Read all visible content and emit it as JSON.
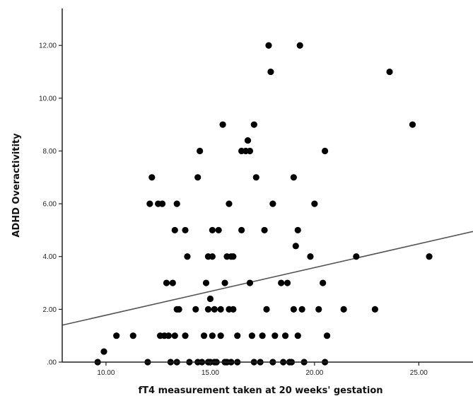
{
  "chart_data": {
    "type": "scatter",
    "title": "",
    "xlabel": "fT4 measurement taken at 20 weeks' gestation",
    "ylabel": "ADHD Overactivitity",
    "xlim": [
      7.9,
      27.6
    ],
    "ylim": [
      0,
      13.4
    ],
    "x_ticks": [
      {
        "value": 10,
        "label": "10.00"
      },
      {
        "value": 15,
        "label": "15.00"
      },
      {
        "value": 20,
        "label": "20.00"
      },
      {
        "value": 25,
        "label": "25.00"
      }
    ],
    "y_ticks": [
      {
        "value": 0,
        "label": ".00"
      },
      {
        "value": 2,
        "label": "2.00"
      },
      {
        "value": 4,
        "label": "4.00"
      },
      {
        "value": 6,
        "label": "6.00"
      },
      {
        "value": 8,
        "label": "8.00"
      },
      {
        "value": 10,
        "label": "10.00"
      },
      {
        "value": 12,
        "label": "12.00"
      }
    ],
    "grid": false,
    "legend": "none",
    "point_color": "#000000",
    "fit_line": {
      "color": "#555555",
      "points": [
        [
          7.9,
          1.4
        ],
        [
          27.6,
          4.95
        ]
      ]
    },
    "points": [
      [
        9.6,
        0
      ],
      [
        9.9,
        0.4
      ],
      [
        10.5,
        1
      ],
      [
        11.3,
        1
      ],
      [
        12.0,
        0
      ],
      [
        12.1,
        6
      ],
      [
        12.2,
        7
      ],
      [
        12.5,
        6
      ],
      [
        12.7,
        6
      ],
      [
        12.6,
        1
      ],
      [
        12.8,
        1
      ],
      [
        13.0,
        1
      ],
      [
        12.9,
        3
      ],
      [
        13.1,
        0
      ],
      [
        13.2,
        3
      ],
      [
        13.3,
        5
      ],
      [
        13.4,
        6
      ],
      [
        13.4,
        2
      ],
      [
        13.4,
        0
      ],
      [
        13.5,
        2
      ],
      [
        13.3,
        1
      ],
      [
        13.8,
        5
      ],
      [
        13.9,
        4
      ],
      [
        13.8,
        1
      ],
      [
        14.0,
        0
      ],
      [
        14.3,
        2
      ],
      [
        14.4,
        7
      ],
      [
        14.5,
        8
      ],
      [
        14.4,
        0
      ],
      [
        14.6,
        0
      ],
      [
        14.7,
        1
      ],
      [
        14.8,
        3
      ],
      [
        14.9,
        4
      ],
      [
        14.9,
        2
      ],
      [
        15.0,
        2.4
      ],
      [
        14.9,
        0
      ],
      [
        15.0,
        0
      ],
      [
        15.1,
        4
      ],
      [
        15.1,
        1
      ],
      [
        15.1,
        5
      ],
      [
        15.2,
        0
      ],
      [
        15.2,
        2
      ],
      [
        15.3,
        0
      ],
      [
        15.4,
        5
      ],
      [
        15.5,
        2
      ],
      [
        15.5,
        1
      ],
      [
        15.6,
        9
      ],
      [
        15.7,
        0
      ],
      [
        15.7,
        3
      ],
      [
        15.8,
        4
      ],
      [
        15.8,
        0
      ],
      [
        15.9,
        6
      ],
      [
        15.9,
        2
      ],
      [
        16.0,
        0
      ],
      [
        16.0,
        4
      ],
      [
        16.1,
        2
      ],
      [
        16.1,
        4
      ],
      [
        16.3,
        0
      ],
      [
        16.3,
        1
      ],
      [
        16.5,
        8
      ],
      [
        16.5,
        5
      ],
      [
        16.7,
        8
      ],
      [
        16.8,
        8.4
      ],
      [
        16.9,
        3
      ],
      [
        16.9,
        8
      ],
      [
        17.0,
        1
      ],
      [
        17.1,
        0
      ],
      [
        17.1,
        9
      ],
      [
        17.2,
        7
      ],
      [
        17.4,
        0
      ],
      [
        17.5,
        1
      ],
      [
        17.6,
        5
      ],
      [
        17.7,
        2
      ],
      [
        17.8,
        12
      ],
      [
        17.9,
        11
      ],
      [
        18.0,
        6
      ],
      [
        18.0,
        0
      ],
      [
        18.1,
        1
      ],
      [
        18.4,
        3
      ],
      [
        18.5,
        0
      ],
      [
        18.6,
        1
      ],
      [
        18.7,
        3
      ],
      [
        18.8,
        0
      ],
      [
        18.9,
        0
      ],
      [
        19.0,
        2
      ],
      [
        19.0,
        7
      ],
      [
        19.1,
        4.4
      ],
      [
        19.2,
        5
      ],
      [
        19.2,
        1
      ],
      [
        19.3,
        12
      ],
      [
        19.4,
        2
      ],
      [
        19.5,
        0
      ],
      [
        19.8,
        4
      ],
      [
        20.0,
        6
      ],
      [
        20.2,
        2
      ],
      [
        20.4,
        3
      ],
      [
        20.5,
        8
      ],
      [
        20.5,
        0
      ],
      [
        20.6,
        1
      ],
      [
        21.4,
        2
      ],
      [
        22.0,
        4
      ],
      [
        22.9,
        2
      ],
      [
        23.6,
        11
      ],
      [
        24.7,
        9
      ],
      [
        25.5,
        4
      ]
    ]
  }
}
